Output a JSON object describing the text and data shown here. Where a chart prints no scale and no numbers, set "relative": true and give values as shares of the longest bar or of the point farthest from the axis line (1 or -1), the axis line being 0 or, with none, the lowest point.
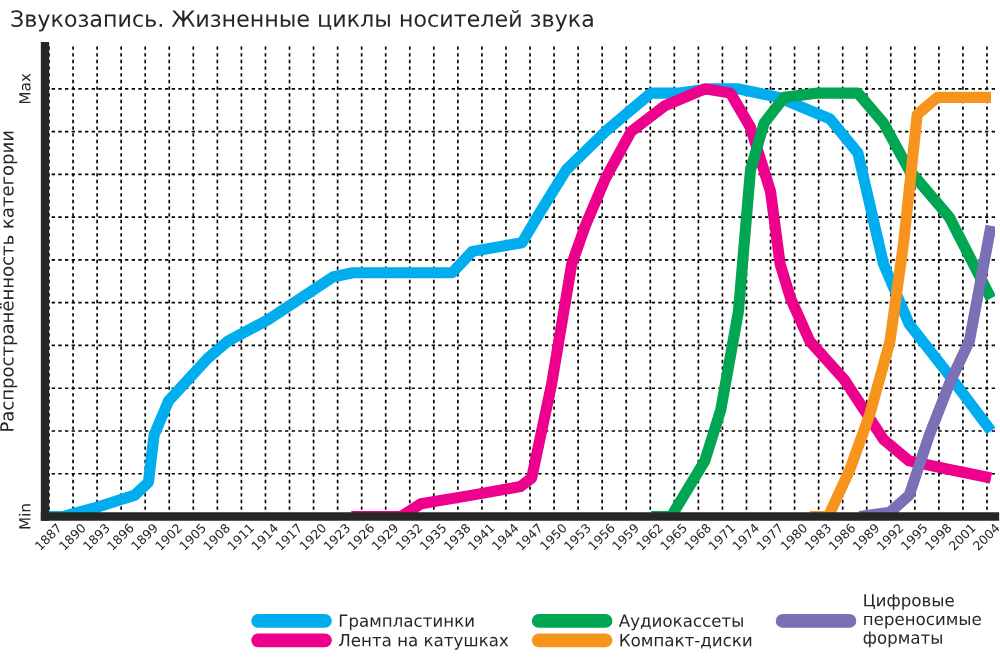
{
  "chart_data": {
    "type": "line",
    "title": "Звукозапись. Жизненные циклы носителей звука",
    "ylabel": "Распространённость категории",
    "relative": true,
    "annotations": [
      "Min",
      "Max"
    ],
    "xlim": [
      1886.5,
      2005
    ],
    "xticks": [
      1887,
      1890,
      1893,
      1896,
      1899,
      1902,
      1905,
      1908,
      1911,
      1914,
      1917,
      1920,
      1923,
      1926,
      1929,
      1932,
      1935,
      1938,
      1941,
      1944,
      1947,
      1950,
      1953,
      1956,
      1959,
      1962,
      1965,
      1968,
      1971,
      1974,
      1977,
      1980,
      1983,
      1986,
      1989,
      1992,
      1995,
      1998,
      2001,
      2004
    ],
    "grid": true,
    "legend": "bottom",
    "marker": "none",
    "line_style": "solid",
    "series": [
      {
        "name": "Грампластинки",
        "color": "#00aeef",
        "x": [
          1887.0,
          1888.7,
          1892.7,
          1897.7,
          1899.4,
          1900.1,
          1901.9,
          1906.8,
          1909.3,
          1914.3,
          1922.4,
          1924.9,
          1937.3,
          1939.8,
          1946.0,
          1948.2,
          1951.5,
          1956.4,
          1962.1,
          1965.6,
          1969.5,
          1973.0,
          1978.0,
          1984.4,
          1987.9,
          1991.1,
          1994.3,
          1999.3,
          2004.5
        ],
        "values": [
          0,
          0,
          0.02,
          0.05,
          0.08,
          0.19,
          0.27,
          0.37,
          0.41,
          0.46,
          0.56,
          0.57,
          0.57,
          0.62,
          0.64,
          0.71,
          0.81,
          0.9,
          0.99,
          0.99,
          1,
          1,
          0.98,
          0.93,
          0.85,
          0.59,
          0.45,
          0.33,
          0.2
        ]
      },
      {
        "name": "Лента на катушках",
        "color": "#ec008c",
        "x": [
          1924.7,
          1930.9,
          1933.4,
          1939.8,
          1945.8,
          1947.2,
          1949.7,
          1952.2,
          1953.9,
          1956.4,
          1959.6,
          1963.8,
          1968.8,
          1972.0,
          1974.5,
          1977.0,
          1978.2,
          1979.5,
          1981.9,
          1986.2,
          1991.1,
          1994.3,
          1999.3,
          2004.5
        ],
        "values": [
          0,
          0,
          0.03,
          0.05,
          0.07,
          0.09,
          0.31,
          0.59,
          0.68,
          0.79,
          0.9,
          0.96,
          1,
          0.99,
          0.91,
          0.76,
          0.59,
          0.51,
          0.41,
          0.32,
          0.18,
          0.13,
          0.11,
          0.09
        ]
      },
      {
        "name": "Аудиокассеты",
        "color": "#00a651",
        "x": [
          1962.1,
          1964.6,
          1968.8,
          1970.8,
          1973.0,
          1974.5,
          1976.2,
          1978.7,
          1982.9,
          1987.9,
          1991.1,
          1994.3,
          1999.3,
          2004.5
        ],
        "values": [
          0,
          0,
          0.13,
          0.25,
          0.48,
          0.81,
          0.92,
          0.98,
          0.99,
          0.99,
          0.92,
          0.81,
          0.7,
          0.51
        ]
      },
      {
        "name": "Компакт-диски",
        "color": "#f7941d",
        "x": [
          1981.9,
          1984.2,
          1986.9,
          1989.4,
          1991.9,
          1993.6,
          1995.3,
          1997.8,
          2004.5
        ],
        "values": [
          0,
          0,
          0.11,
          0.24,
          0.41,
          0.64,
          0.94,
          0.98,
          0.98
        ]
      },
      {
        "name": "Цифровые переносимые форматы",
        "color": "#7b6fb5",
        "x": [
          1988.1,
          1991.9,
          1994.3,
          1996.8,
          1999.3,
          2001.8,
          2004.5
        ],
        "values": [
          0,
          0.01,
          0.05,
          0.19,
          0.31,
          0.41,
          0.68
        ]
      }
    ]
  }
}
